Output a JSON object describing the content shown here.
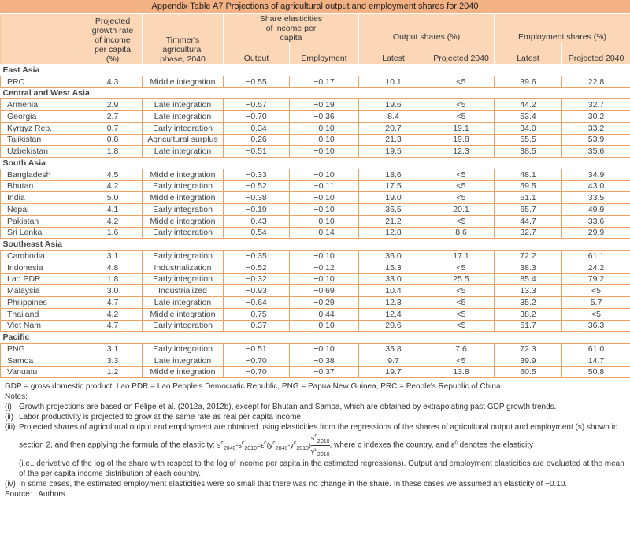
{
  "title": "Appendix Table A7  Projections of agricultural output and employment shares for 2040",
  "headers": {
    "growth": "Projected growth rate of income per capita (%)",
    "phase": "Timmer's agricultural phase, 2040",
    "elast": "Share elasticities of income per capita",
    "output_shares": "Output shares (%)",
    "emp_shares": "Employment shares (%)",
    "output": "Output",
    "employment": "Employment",
    "latest1": "Latest",
    "proj1": "Projected 2040",
    "latest2": "Latest",
    "proj2": "Projected 2040"
  },
  "groups": [
    {
      "name": "East Asia",
      "rows": [
        [
          "PRC",
          "4.3",
          "Middle integration",
          "−0.55",
          "−0.17",
          "10.1",
          "<5",
          "39.6",
          "22.8"
        ]
      ]
    },
    {
      "name": "Central and West Asia",
      "rows": [
        [
          "Armenia",
          "2.9",
          "Late integration",
          "−0.57",
          "−0.19",
          "19.6",
          "<5",
          "44.2",
          "32.7"
        ],
        [
          "Georgia",
          "2.7",
          "Late integration",
          "−0.70",
          "−0.36",
          "8.4",
          "<5",
          "53.4",
          "30.2"
        ],
        [
          "Kyrgyz Rep.",
          "0.7",
          "Early integration",
          "−0.34",
          "−0.10",
          "20.7",
          "19.1",
          "34.0",
          "33.2"
        ],
        [
          "Tajikistan",
          "0.8",
          "Agricultural surplus",
          "−0.26",
          "−0.10",
          "21.3",
          "19.8",
          "55.5",
          "53.9"
        ],
        [
          "Uzbekistan",
          "1.8",
          "Late integration",
          "−0.51",
          "−0.10",
          "19.5",
          "12.3",
          "38.5",
          "35.6"
        ]
      ]
    },
    {
      "name": "South Asia",
      "rows": [
        [
          "Bangladesh",
          "4.5",
          "Middle integration",
          "−0.33",
          "−0.10",
          "18.6",
          "<5",
          "48.1",
          "34.9"
        ],
        [
          "Bhutan",
          "4.2",
          "Early integration",
          "−0.52",
          "−0.11",
          "17.5",
          "<5",
          "59.5",
          "43.0"
        ],
        [
          "India",
          "5.0",
          "Middle integration",
          "−0.38",
          "−0.10",
          "19.0",
          "<5",
          "51.1",
          "33.5"
        ],
        [
          "Nepal",
          "4.1",
          "Early integration",
          "−0.19",
          "−0.10",
          "36.5",
          "20.1",
          "65.7",
          "49.9"
        ],
        [
          "Pakistan",
          "4.2",
          "Middle integration",
          "−0.43",
          "−0.10",
          "21.2",
          "<5",
          "44.7",
          "33.6"
        ],
        [
          "Sri Lanka",
          "1.6",
          "Early integration",
          "−0.54",
          "−0.14",
          "12.8",
          "8.6",
          "32.7",
          "29.9"
        ]
      ]
    },
    {
      "name": "Southeast Asia",
      "rows": [
        [
          "Cambodia",
          "3.1",
          "Early integration",
          "−0.35",
          "−0.10",
          "36.0",
          "17.1",
          "72.2",
          "61.1"
        ],
        [
          "Indonesia",
          "4.8",
          "Industrialization",
          "−0.52",
          "−0.12",
          "15.3",
          "<5",
          "38.3",
          "24.2"
        ],
        [
          "Lao PDR",
          "1.8",
          "Early integration",
          "−0.32",
          "−0.10",
          "33.0",
          "25.5",
          "85.4",
          "79.2"
        ],
        [
          "Malaysia",
          "3.0",
          "Industrialized",
          "−0.93",
          "−0.69",
          "10.4",
          "<5",
          "13.3",
          "<5"
        ],
        [
          "Philippines",
          "4.7",
          "Late integration",
          "−0.64",
          "−0.29",
          "12.3",
          "<5",
          "35.2",
          "5.7"
        ],
        [
          "Thailand",
          "4.2",
          "Middle integration",
          "−0.75",
          "−0.44",
          "12.4",
          "<5",
          "38.2",
          "<5"
        ],
        [
          "Viet Nam",
          "4.7",
          "Early integration",
          "−0.37",
          "−0.10",
          "20.6",
          "<5",
          "51.7",
          "36.3"
        ]
      ]
    },
    {
      "name": "Pacific",
      "rows": [
        [
          "PNG",
          "3.1",
          "Early integration",
          "−0.51",
          "−0.10",
          "35.8",
          "7.6",
          "72.3",
          "61.0"
        ],
        [
          "Samoa",
          "3.3",
          "Late integration",
          "−0.70",
          "−0.38",
          "9.7",
          "<5",
          "39.9",
          "14.7"
        ],
        [
          "Vanuatu",
          "1.2",
          "Middle integration",
          "−0.70",
          "−0.37",
          "19.7",
          "13.8",
          "60.5",
          "50.8"
        ]
      ]
    }
  ],
  "notes": {
    "abbrev": "GDP = gross domestic product, Lao PDR = Lao People's Democratic Republic, PNG = Papua New Guinea, PRC = People's Republic of China.",
    "label": "Notes:",
    "items": [
      {
        "k": "(i)",
        "t": "Growth projections are based on Felipe et al. (2012a, 2012b), except for Bhutan and Samoa, which are obtained by extrapolating past GDP growth trends."
      },
      {
        "k": "(ii)",
        "t": "Labor productivity is projected to grow at the same rate as real per capita income."
      },
      {
        "k": "(iii)",
        "t": "Projected shares of agricultural output and employment are obtained using elasticities from the regressions of the shares of agricultural output and employment (s) shown in section 2, and then applying the formula of the elasticity:",
        "t2": ", where c indexes the country, and ε",
        "t3": " denotes the elasticity",
        "t4": "(i.e., derivative of the log of the share with respect to the log of income per capita in the estimated regressions). Output and employment elasticities are evaluated at the mean of the per capita income distribution of each country."
      },
      {
        "k": "(iv)",
        "t": "In some cases, the estimated employment elasticities were so small that there was no change in the share. In these cases we assumed an elasticity of −0.10."
      }
    ],
    "source_label": "Source:",
    "source": "Authors."
  }
}
